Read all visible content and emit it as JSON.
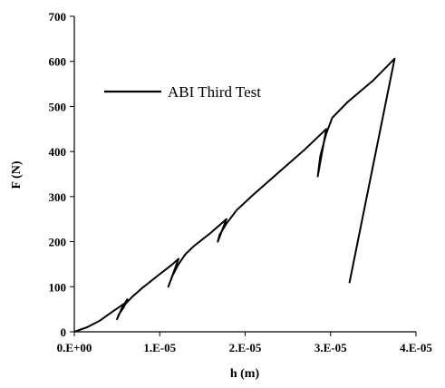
{
  "chart_data": {
    "type": "line",
    "title": "",
    "xlabel": "h (m)",
    "ylabel": "F (N)",
    "xlim": [
      0,
      4e-05
    ],
    "ylim": [
      0,
      700
    ],
    "x_ticks": [
      0,
      1e-05,
      2e-05,
      3e-05,
      4e-05
    ],
    "x_tick_labels": [
      "0.E+00",
      "1.E-05",
      "2.E-05",
      "3.E-05",
      "4.E-05"
    ],
    "y_ticks": [
      0,
      100,
      200,
      300,
      400,
      500,
      600,
      700
    ],
    "y_tick_labels": [
      "0",
      "100",
      "200",
      "300",
      "400",
      "500",
      "600",
      "700"
    ],
    "grid": false,
    "legend_position": "upper-left",
    "series": [
      {
        "name": "ABI Third Test",
        "color": "#000000",
        "x": [
          0,
          1.5e-06,
          3e-06,
          4.5e-06,
          5.8e-06,
          5e-06,
          5.2e-06,
          5.8e-06,
          6.2e-06,
          5.5e-06,
          5.8e-06,
          6.2e-06,
          6.8e-06,
          8e-06,
          1e-05,
          1.15e-05,
          1.22e-05,
          1.1e-05,
          1.15e-05,
          1.22e-05,
          1.3e-05,
          1.4e-05,
          1.6e-05,
          1.78e-05,
          1.68e-05,
          1.7e-05,
          1.78e-05,
          1.9e-05,
          2.1e-05,
          2.4e-05,
          2.7e-05,
          2.95e-05,
          2.85e-05,
          2.88e-05,
          2.95e-05,
          3.02e-05,
          3.2e-05,
          3.5e-05,
          3.75e-05,
          3.22e-05
        ],
        "y": [
          0,
          10,
          25,
          45,
          62,
          28,
          38,
          55,
          72,
          50,
          58,
          66,
          78,
          98,
          128,
          150,
          162,
          100,
          125,
          150,
          172,
          190,
          220,
          250,
          200,
          215,
          240,
          270,
          305,
          355,
          405,
          450,
          345,
          390,
          440,
          475,
          510,
          558,
          606,
          108
        ]
      }
    ]
  },
  "legend": {
    "label": "ABI Third Test"
  }
}
